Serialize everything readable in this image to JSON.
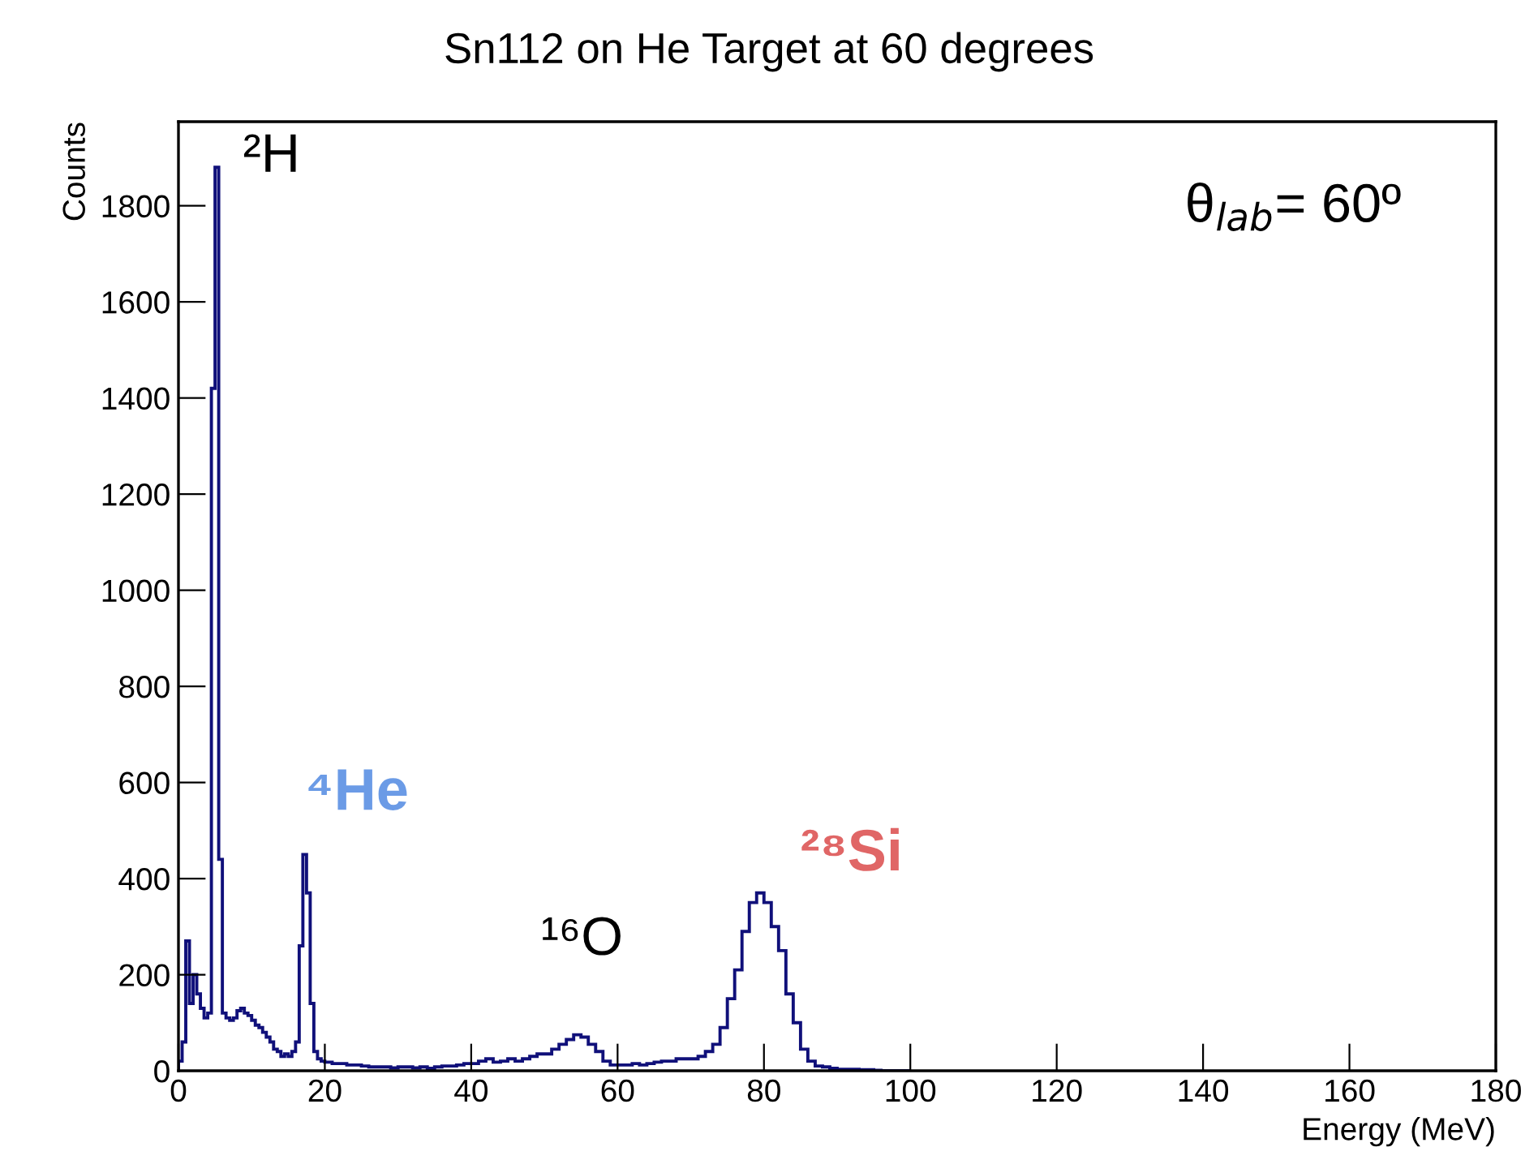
{
  "chart_data": {
    "type": "histogram",
    "title": "Sn112 on He Target at 60 degrees",
    "xlabel": "Energy (MeV)",
    "ylabel": "Counts",
    "bins": [
      0,
      0.5,
      1,
      1.5,
      2,
      2.5,
      3,
      3.5,
      4,
      4.5,
      5,
      5.5,
      6,
      6.5,
      7,
      7.5,
      8,
      8.5,
      9,
      9.5,
      10,
      10.5,
      11,
      11.5,
      12,
      12.5,
      13,
      13.5,
      14,
      14.5,
      15,
      15.5,
      16,
      16.5,
      17,
      17.5,
      18,
      18.5,
      19,
      19.5,
      20,
      21,
      22,
      23,
      24,
      25,
      26,
      27,
      28,
      29,
      30,
      31,
      32,
      33,
      34,
      35,
      36,
      37,
      38,
      39,
      40,
      41,
      42,
      43,
      44,
      45,
      46,
      47,
      48,
      49,
      50,
      51,
      52,
      53,
      54,
      55,
      56,
      57,
      58,
      59,
      60,
      61,
      62,
      63,
      64,
      65,
      66,
      67,
      68,
      69,
      70,
      71,
      72,
      73,
      74,
      75,
      76,
      77,
      78,
      79,
      80,
      81,
      82,
      83,
      84,
      85,
      86,
      87,
      88,
      89,
      90,
      91,
      92,
      93,
      94,
      95,
      96,
      97,
      98,
      99,
      100
    ],
    "values": [
      20,
      60,
      270,
      140,
      200,
      160,
      130,
      110,
      120,
      1420,
      1880,
      440,
      120,
      110,
      105,
      110,
      125,
      130,
      120,
      115,
      105,
      95,
      90,
      80,
      70,
      60,
      45,
      40,
      30,
      35,
      30,
      40,
      60,
      260,
      450,
      370,
      140,
      40,
      25,
      20,
      18,
      15,
      15,
      12,
      12,
      10,
      8,
      8,
      8,
      6,
      8,
      8,
      6,
      8,
      5,
      8,
      10,
      10,
      12,
      15,
      15,
      20,
      25,
      18,
      20,
      25,
      20,
      25,
      30,
      35,
      35,
      45,
      55,
      65,
      75,
      70,
      55,
      40,
      20,
      12,
      12,
      12,
      15,
      12,
      15,
      18,
      20,
      20,
      25,
      25,
      25,
      30,
      40,
      55,
      90,
      150,
      210,
      290,
      350,
      370,
      350,
      300,
      250,
      160,
      100,
      45,
      20,
      10,
      8,
      5,
      3,
      3,
      3,
      2,
      2,
      1,
      0,
      0,
      0,
      0
    ],
    "color": "#10107a",
    "xlim": [
      0,
      180
    ],
    "xticks": [
      0,
      20,
      40,
      60,
      80,
      100,
      120,
      140,
      160,
      180
    ],
    "ylim": [
      0,
      1975
    ],
    "yticks": [
      0,
      200,
      400,
      600,
      800,
      1000,
      1200,
      1400,
      1600,
      1800
    ],
    "grid": false,
    "legend": false,
    "annotations": [
      "²H",
      "⁴He",
      "¹⁶O",
      "²⁸Si",
      "θ$_{lab}$= 60º"
    ]
  }
}
